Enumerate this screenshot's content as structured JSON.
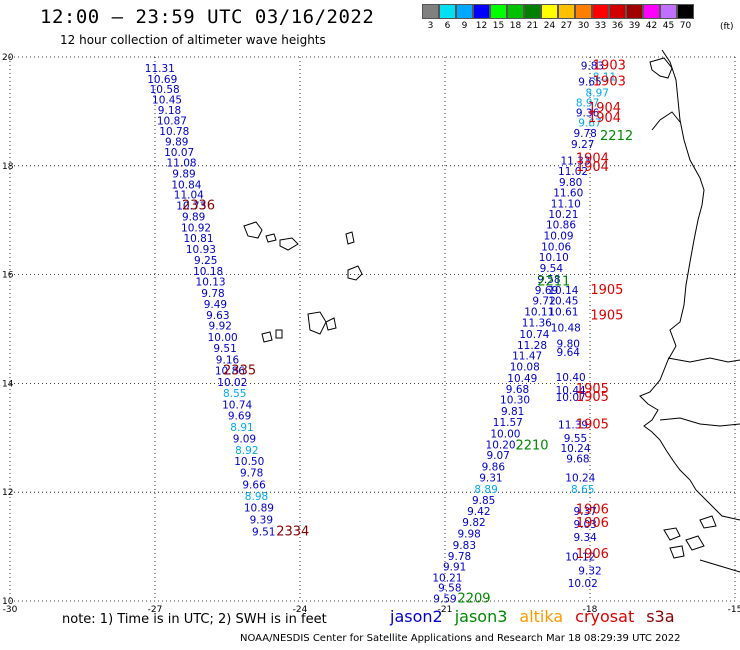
{
  "header": {
    "title": "12:00 – 23:59 UTC 03/16/2022",
    "subtitle": "12 hour collection of altimeter wave heights"
  },
  "legend": {
    "unit": "(ft)",
    "bins": [
      {
        "label": "3",
        "color": "#808080"
      },
      {
        "label": "6",
        "color": "#00e0f0"
      },
      {
        "label": "9",
        "color": "#00a8ff"
      },
      {
        "label": "12",
        "color": "#0000ff"
      },
      {
        "label": "15",
        "color": "#00ff00"
      },
      {
        "label": "18",
        "color": "#00c000"
      },
      {
        "label": "21",
        "color": "#008000"
      },
      {
        "label": "24",
        "color": "#ffff00"
      },
      {
        "label": "27",
        "color": "#ffc000"
      },
      {
        "label": "30",
        "color": "#ff8000"
      },
      {
        "label": "33",
        "color": "#ff0000"
      },
      {
        "label": "36",
        "color": "#d00000"
      },
      {
        "label": "39",
        "color": "#a00000"
      },
      {
        "label": "42",
        "color": "#ff00ff"
      },
      {
        "label": "45",
        "color": "#c070ff"
      },
      {
        "label": "70",
        "color": "#000000"
      }
    ]
  },
  "map": {
    "lon_min": -30,
    "lon_max": -15,
    "lat_min": 10,
    "lat_max": 20,
    "lon_ticks": [
      "-30",
      "-27",
      "-24",
      "-21",
      "-18",
      "-15"
    ],
    "lat_ticks": [
      "20",
      "18",
      "16",
      "14",
      "12",
      "10"
    ],
    "grid": true,
    "colors": {
      "jason2": "#0000cc",
      "jason3": "#008800",
      "altika": "#ff9900",
      "cryosat": "#dd0000",
      "s3a": "#880000",
      "light": "#00aaee"
    },
    "labels": [
      {
        "t": "11.31",
        "lon": -26.9,
        "lat": 19.8,
        "c": "jason2"
      },
      {
        "t": "10.69",
        "lon": -26.85,
        "lat": 19.6,
        "c": "jason2"
      },
      {
        "t": "10.58",
        "lon": -26.8,
        "lat": 19.41,
        "c": "jason2"
      },
      {
        "t": "10.45",
        "lon": -26.75,
        "lat": 19.22,
        "c": "jason2"
      },
      {
        "t": "9.18",
        "lon": -26.7,
        "lat": 19.03,
        "c": "jason2"
      },
      {
        "t": "10.87",
        "lon": -26.65,
        "lat": 18.83,
        "c": "jason2"
      },
      {
        "t": "10.78",
        "lon": -26.6,
        "lat": 18.64,
        "c": "jason2"
      },
      {
        "t": "9.89",
        "lon": -26.55,
        "lat": 18.45,
        "c": "jason2"
      },
      {
        "t": "10.07",
        "lon": -26.5,
        "lat": 18.25,
        "c": "jason2"
      },
      {
        "t": "11.08",
        "lon": -26.45,
        "lat": 18.06,
        "c": "jason2"
      },
      {
        "t": "9.89",
        "lon": -26.4,
        "lat": 17.86,
        "c": "jason2"
      },
      {
        "t": "10.84",
        "lon": -26.35,
        "lat": 17.66,
        "c": "jason2"
      },
      {
        "t": "11.04",
        "lon": -26.3,
        "lat": 17.47,
        "c": "jason2"
      },
      {
        "t": "10.73",
        "lon": -26.25,
        "lat": 17.27,
        "c": "jason2"
      },
      {
        "t": "9.89",
        "lon": -26.2,
        "lat": 17.07,
        "c": "jason2"
      },
      {
        "t": "10.92",
        "lon": -26.15,
        "lat": 16.87,
        "c": "jason2"
      },
      {
        "t": "10.81",
        "lon": -26.1,
        "lat": 16.67,
        "c": "jason2"
      },
      {
        "t": "10.93",
        "lon": -26.05,
        "lat": 16.47,
        "c": "jason2"
      },
      {
        "t": "9.25",
        "lon": -25.95,
        "lat": 16.27,
        "c": "jason2"
      },
      {
        "t": "10.18",
        "lon": -25.9,
        "lat": 16.07,
        "c": "jason2"
      },
      {
        "t": "10.13",
        "lon": -25.85,
        "lat": 15.87,
        "c": "jason2"
      },
      {
        "t": "9.78",
        "lon": -25.8,
        "lat": 15.66,
        "c": "jason2"
      },
      {
        "t": "9.49",
        "lon": -25.75,
        "lat": 15.46,
        "c": "jason2"
      },
      {
        "t": "9.63",
        "lon": -25.7,
        "lat": 15.26,
        "c": "jason2"
      },
      {
        "t": "9.92",
        "lon": -25.65,
        "lat": 15.06,
        "c": "jason2"
      },
      {
        "t": "10.00",
        "lon": -25.6,
        "lat": 14.85,
        "c": "jason2"
      },
      {
        "t": "9.51",
        "lon": -25.55,
        "lat": 14.65,
        "c": "jason2"
      },
      {
        "t": "9.16",
        "lon": -25.5,
        "lat": 14.44,
        "c": "jason2"
      },
      {
        "t": "10.86",
        "lon": -25.45,
        "lat": 14.24,
        "c": "jason2"
      },
      {
        "t": "10.02",
        "lon": -25.4,
        "lat": 14.03,
        "c": "jason2"
      },
      {
        "t": "8.55",
        "lon": -25.35,
        "lat": 13.82,
        "c": "light"
      },
      {
        "t": "10.74",
        "lon": -25.3,
        "lat": 13.61,
        "c": "jason2"
      },
      {
        "t": "9.69",
        "lon": -25.25,
        "lat": 13.41,
        "c": "jason2"
      },
      {
        "t": "8.91",
        "lon": -25.2,
        "lat": 13.2,
        "c": "light"
      },
      {
        "t": "9.09",
        "lon": -25.15,
        "lat": 12.99,
        "c": "jason2"
      },
      {
        "t": "8.92",
        "lon": -25.1,
        "lat": 12.78,
        "c": "light"
      },
      {
        "t": "10.50",
        "lon": -25.05,
        "lat": 12.57,
        "c": "jason2"
      },
      {
        "t": "9.78",
        "lon": -25.0,
        "lat": 12.36,
        "c": "jason2"
      },
      {
        "t": "9.66",
        "lon": -24.95,
        "lat": 12.14,
        "c": "jason2"
      },
      {
        "t": "8.98",
        "lon": -24.9,
        "lat": 11.93,
        "c": "light"
      },
      {
        "t": "10.89",
        "lon": -24.85,
        "lat": 11.72,
        "c": "jason2"
      },
      {
        "t": "9.39",
        "lon": -24.8,
        "lat": 11.5,
        "c": "jason2"
      },
      {
        "t": "9.51",
        "lon": -24.75,
        "lat": 11.28,
        "c": "jason2"
      },
      {
        "t": "2336",
        "lon": -26.1,
        "lat": 17.27,
        "c": "s3a",
        "big": true
      },
      {
        "t": "2335",
        "lon": -25.25,
        "lat": 14.24,
        "c": "s3a",
        "big": true
      },
      {
        "t": "2334",
        "lon": -24.15,
        "lat": 11.28,
        "c": "s3a",
        "big": true
      },
      {
        "t": "9.59",
        "lon": -21.0,
        "lat": 10.05,
        "c": "jason2"
      },
      {
        "t": "9.58",
        "lon": -20.9,
        "lat": 10.25,
        "c": "jason2"
      },
      {
        "t": "10.21",
        "lon": -20.95,
        "lat": 10.43,
        "c": "jason2"
      },
      {
        "t": "9.91",
        "lon": -20.8,
        "lat": 10.63,
        "c": "jason2"
      },
      {
        "t": "9.78",
        "lon": -20.7,
        "lat": 10.83,
        "c": "jason2"
      },
      {
        "t": "9.83",
        "lon": -20.6,
        "lat": 11.03,
        "c": "jason2"
      },
      {
        "t": "9.98",
        "lon": -20.5,
        "lat": 11.24,
        "c": "jason2"
      },
      {
        "t": "9.82",
        "lon": -20.4,
        "lat": 11.45,
        "c": "jason2"
      },
      {
        "t": "9.42",
        "lon": -20.3,
        "lat": 11.65,
        "c": "jason2"
      },
      {
        "t": "9.85",
        "lon": -20.2,
        "lat": 11.86,
        "c": "jason2"
      },
      {
        "t": "8.89",
        "lon": -20.15,
        "lat": 12.06,
        "c": "light"
      },
      {
        "t": "9.31",
        "lon": -20.05,
        "lat": 12.27,
        "c": "jason2"
      },
      {
        "t": "9.86",
        "lon": -20.0,
        "lat": 12.47,
        "c": "jason2"
      },
      {
        "t": "9.07",
        "lon": -19.9,
        "lat": 12.68,
        "c": "jason2"
      },
      {
        "t": "10.20",
        "lon": -19.85,
        "lat": 12.88,
        "c": "jason2"
      },
      {
        "t": "10.00",
        "lon": -19.75,
        "lat": 13.08,
        "c": "jason2"
      },
      {
        "t": "11.57",
        "lon": -19.7,
        "lat": 13.29,
        "c": "jason2"
      },
      {
        "t": "9.81",
        "lon": -19.6,
        "lat": 13.49,
        "c": "jason2"
      },
      {
        "t": "10.30",
        "lon": -19.55,
        "lat": 13.7,
        "c": "jason2"
      },
      {
        "t": "9.68",
        "lon": -19.5,
        "lat": 13.9,
        "c": "jason2"
      },
      {
        "t": "10.49",
        "lon": -19.4,
        "lat": 14.1,
        "c": "jason2"
      },
      {
        "t": "10.08",
        "lon": -19.35,
        "lat": 14.31,
        "c": "jason2"
      },
      {
        "t": "11.47",
        "lon": -19.3,
        "lat": 14.51,
        "c": "jason2"
      },
      {
        "t": "11.28",
        "lon": -19.2,
        "lat": 14.71,
        "c": "jason2"
      },
      {
        "t": "10.74",
        "lon": -19.15,
        "lat": 14.91,
        "c": "jason2"
      },
      {
        "t": "11.36",
        "lon": -19.1,
        "lat": 15.12,
        "c": "jason2"
      },
      {
        "t": "10.11",
        "lon": -19.05,
        "lat": 15.32,
        "c": "jason2"
      },
      {
        "t": "9.72",
        "lon": -18.95,
        "lat": 15.52,
        "c": "jason2"
      },
      {
        "t": "9.69",
        "lon": -18.9,
        "lat": 15.72,
        "c": "jason2"
      },
      {
        "t": "9.58",
        "lon": -18.85,
        "lat": 15.92,
        "c": "jason2"
      },
      {
        "t": "9.54",
        "lon": -18.8,
        "lat": 16.12,
        "c": "jason2"
      },
      {
        "t": "10.10",
        "lon": -18.75,
        "lat": 16.32,
        "c": "jason2"
      },
      {
        "t": "10.06",
        "lon": -18.7,
        "lat": 16.52,
        "c": "jason2"
      },
      {
        "t": "10.09",
        "lon": -18.65,
        "lat": 16.72,
        "c": "jason2"
      },
      {
        "t": "10.86",
        "lon": -18.6,
        "lat": 16.92,
        "c": "jason2"
      },
      {
        "t": "10.21",
        "lon": -18.55,
        "lat": 17.11,
        "c": "jason2"
      },
      {
        "t": "11.10",
        "lon": -18.5,
        "lat": 17.31,
        "c": "jason2"
      },
      {
        "t": "11.60",
        "lon": -18.45,
        "lat": 17.51,
        "c": "jason2"
      },
      {
        "t": "9.80",
        "lon": -18.4,
        "lat": 17.7,
        "c": "jason2"
      },
      {
        "t": "11.02",
        "lon": -18.35,
        "lat": 17.9,
        "c": "jason2"
      },
      {
        "t": "11.33",
        "lon": -18.3,
        "lat": 18.1,
        "c": "jason2"
      },
      {
        "t": "9.27",
        "lon": -18.15,
        "lat": 18.4,
        "c": "jason2"
      },
      {
        "t": "9.78",
        "lon": -18.1,
        "lat": 18.6,
        "c": "jason2"
      },
      {
        "t": "9.67",
        "lon": -18.0,
        "lat": 18.8,
        "c": "light"
      },
      {
        "t": "9.36",
        "lon": -18.05,
        "lat": 18.98,
        "c": "jason2"
      },
      {
        "t": "8.97",
        "lon": -18.05,
        "lat": 19.16,
        "c": "light"
      },
      {
        "t": "8.97",
        "lon": -17.85,
        "lat": 19.35,
        "c": "light"
      },
      {
        "t": "9.65",
        "lon": -18.0,
        "lat": 19.55,
        "c": "jason2"
      },
      {
        "t": "8.11",
        "lon": -17.7,
        "lat": 19.64,
        "c": "light"
      },
      {
        "t": "9.83",
        "lon": -17.95,
        "lat": 19.84,
        "c": "jason2"
      },
      {
        "t": "10.02",
        "lon": -18.15,
        "lat": 10.33,
        "c": "jason2"
      },
      {
        "t": "9.32",
        "lon": -18.0,
        "lat": 10.56,
        "c": "jason2"
      },
      {
        "t": "10.12",
        "lon": -18.2,
        "lat": 10.82,
        "c": "jason2"
      },
      {
        "t": "9.34",
        "lon": -18.1,
        "lat": 11.18,
        "c": "jason2"
      },
      {
        "t": "9.03",
        "lon": -18.1,
        "lat": 11.42,
        "c": "jason2"
      },
      {
        "t": "9.37",
        "lon": -18.1,
        "lat": 11.65,
        "c": "jason2"
      },
      {
        "t": "8.65",
        "lon": -18.15,
        "lat": 12.06,
        "c": "light"
      },
      {
        "t": "10.24",
        "lon": -18.2,
        "lat": 12.27,
        "c": "jason2"
      },
      {
        "t": "9.68",
        "lon": -18.25,
        "lat": 12.62,
        "c": "jason2"
      },
      {
        "t": "10.24",
        "lon": -18.3,
        "lat": 12.81,
        "c": "jason2"
      },
      {
        "t": "9.55",
        "lon": -18.3,
        "lat": 13.0,
        "c": "jason2"
      },
      {
        "t": "11.39",
        "lon": -18.35,
        "lat": 13.24,
        "c": "jason2"
      },
      {
        "t": "10.07",
        "lon": -18.4,
        "lat": 13.75,
        "c": "jason2"
      },
      {
        "t": "10.44",
        "lon": -18.4,
        "lat": 13.88,
        "c": "jason2"
      },
      {
        "t": "10.40",
        "lon": -18.4,
        "lat": 14.12,
        "c": "jason2"
      },
      {
        "t": "9.64",
        "lon": -18.45,
        "lat": 14.58,
        "c": "jason2"
      },
      {
        "t": "9.80",
        "lon": -18.45,
        "lat": 14.73,
        "c": "jason2"
      },
      {
        "t": "10.48",
        "lon": -18.5,
        "lat": 15.03,
        "c": "jason2"
      },
      {
        "t": "10.61",
        "lon": -18.55,
        "lat": 15.32,
        "c": "jason2"
      },
      {
        "t": "10.45",
        "lon": -18.55,
        "lat": 15.52,
        "c": "jason2"
      },
      {
        "t": "10.14",
        "lon": -18.55,
        "lat": 15.72,
        "c": "jason2"
      },
      {
        "t": "1903",
        "lon": -17.6,
        "lat": 19.84,
        "c": "cryosat",
        "big": true
      },
      {
        "t": "1903",
        "lon": -17.6,
        "lat": 19.55,
        "c": "cryosat",
        "big": true
      },
      {
        "t": "1904",
        "lon": -17.7,
        "lat": 19.06,
        "c": "cryosat",
        "big": true
      },
      {
        "t": "1904",
        "lon": -17.7,
        "lat": 18.88,
        "c": "cryosat",
        "big": true
      },
      {
        "t": "1904",
        "lon": -17.95,
        "lat": 18.13,
        "c": "cryosat",
        "big": true
      },
      {
        "t": "1904",
        "lon": -17.95,
        "lat": 17.98,
        "c": "cryosat",
        "big": true
      },
      {
        "t": "1905",
        "lon": -17.65,
        "lat": 15.72,
        "c": "cryosat",
        "big": true
      },
      {
        "t": "1905",
        "lon": -17.65,
        "lat": 15.25,
        "c": "cryosat",
        "big": true
      },
      {
        "t": "1905",
        "lon": -17.95,
        "lat": 13.9,
        "c": "cryosat",
        "big": true
      },
      {
        "t": "1905",
        "lon": -17.95,
        "lat": 13.75,
        "c": "cryosat",
        "big": true
      },
      {
        "t": "1905",
        "lon": -17.95,
        "lat": 13.24,
        "c": "cryosat",
        "big": true
      },
      {
        "t": "1906",
        "lon": -17.95,
        "lat": 11.68,
        "c": "cryosat",
        "big": true
      },
      {
        "t": "1906",
        "lon": -17.95,
        "lat": 11.43,
        "c": "cryosat",
        "big": true
      },
      {
        "t": "1906",
        "lon": -17.95,
        "lat": 10.86,
        "c": "cryosat",
        "big": true
      },
      {
        "t": "2212",
        "lon": -17.45,
        "lat": 18.55,
        "c": "jason3",
        "big": true
      },
      {
        "t": "2211",
        "lon": -18.75,
        "lat": 15.87,
        "c": "jason3",
        "big": true
      },
      {
        "t": "2210",
        "lon": -19.2,
        "lat": 12.86,
        "c": "jason3",
        "big": true
      },
      {
        "t": "2209",
        "lon": -20.4,
        "lat": 10.05,
        "c": "jason3",
        "big": true
      }
    ]
  },
  "footer": {
    "note": "note: 1) Time is in UTC; 2) SWH is in feet",
    "satellites": [
      {
        "name": "jason2",
        "color": "#0000cc"
      },
      {
        "name": "jason3",
        "color": "#008800"
      },
      {
        "name": "altika",
        "color": "#ff9900"
      },
      {
        "name": "cryosat",
        "color": "#dd0000"
      },
      {
        "name": "s3a",
        "color": "#880000"
      }
    ],
    "credit": "NOAA/NESDIS Center for Satellite Applications and Research     Mar 18 08:29:39 UTC 2022"
  }
}
